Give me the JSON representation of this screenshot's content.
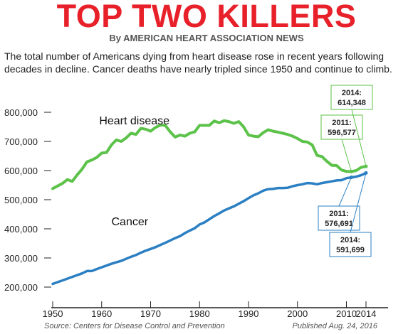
{
  "header": {
    "title": "TOP TWO KILLERS",
    "byline": "By AMERICAN HEART ASSOCIATION NEWS",
    "intro": "The total number of Americans dying from heart disease rose in recent years following decades in decline. Cancer deaths have nearly tripled since 1950 and continue to climb."
  },
  "footer": {
    "source": "Source: Centers for Disease Control and Prevention",
    "published": "Published Aug. 24, 2016"
  },
  "colors": {
    "heart": "#5cc24a",
    "cancer": "#2b7fc3",
    "title": "#e8202a",
    "grid": "#222222"
  },
  "chart_data": {
    "type": "line",
    "title": "TOP TWO KILLERS",
    "xlabel": "",
    "ylabel": "",
    "xlim": [
      1950,
      2014
    ],
    "ylim": [
      200000,
      800000
    ],
    "x_ticks": [
      "1950",
      "1960",
      "1970",
      "1980",
      "1990",
      "2000",
      "2010",
      "2014"
    ],
    "y_ticks": [
      "200,000",
      "300,000",
      "400,000",
      "500,000",
      "600,000",
      "700,000",
      "800,000"
    ],
    "grid": false,
    "series": [
      {
        "name": "Heart disease",
        "x": [
          1950,
          1951,
          1952,
          1953,
          1954,
          1955,
          1956,
          1957,
          1958,
          1959,
          1960,
          1961,
          1962,
          1963,
          1964,
          1965,
          1966,
          1967,
          1968,
          1969,
          1970,
          1971,
          1972,
          1973,
          1974,
          1975,
          1976,
          1977,
          1978,
          1979,
          1980,
          1981,
          1982,
          1983,
          1984,
          1985,
          1986,
          1987,
          1988,
          1989,
          1990,
          1991,
          1992,
          1993,
          1994,
          1995,
          1996,
          1997,
          1998,
          1999,
          2000,
          2001,
          2002,
          2003,
          2004,
          2005,
          2006,
          2007,
          2008,
          2009,
          2010,
          2011,
          2012,
          2013,
          2014
        ],
        "values": [
          538000,
          547000,
          556000,
          569000,
          563000,
          585000,
          605000,
          630000,
          636000,
          645000,
          660000,
          662000,
          688000,
          705000,
          700000,
          712000,
          728000,
          724000,
          745000,
          742000,
          735000,
          748000,
          756000,
          755000,
          733000,
          715000,
          722000,
          718000,
          728000,
          733000,
          755000,
          755000,
          755000,
          770000,
          764000,
          771000,
          768000,
          762000,
          768000,
          750000,
          722000,
          718000,
          716000,
          730000,
          740000,
          735000,
          732000,
          728000,
          724000,
          718000,
          710000,
          700000,
          698000,
          688000,
          652000,
          648000,
          632000,
          618000,
          617000,
          602000,
          597000,
          596577,
          600000,
          611000,
          614348
        ]
      },
      {
        "name": "Cancer",
        "x": [
          1950,
          1951,
          1952,
          1953,
          1954,
          1955,
          1956,
          1957,
          1958,
          1959,
          1960,
          1961,
          1962,
          1963,
          1964,
          1965,
          1966,
          1967,
          1968,
          1969,
          1970,
          1971,
          1972,
          1973,
          1974,
          1975,
          1976,
          1977,
          1978,
          1979,
          1980,
          1981,
          1982,
          1983,
          1984,
          1985,
          1986,
          1987,
          1988,
          1989,
          1990,
          1991,
          1992,
          1993,
          1994,
          1995,
          1996,
          1997,
          1998,
          1999,
          2000,
          2001,
          2002,
          2003,
          2004,
          2005,
          2006,
          2007,
          2008,
          2009,
          2010,
          2011,
          2012,
          2013,
          2014
        ],
        "values": [
          211000,
          217000,
          223000,
          229000,
          235000,
          241000,
          247000,
          255000,
          255000,
          262000,
          268000,
          274000,
          280000,
          285000,
          290000,
          297000,
          304000,
          310000,
          318000,
          325000,
          331000,
          337000,
          345000,
          352000,
          360000,
          368000,
          375000,
          385000,
          394000,
          402000,
          415000,
          422000,
          433000,
          444000,
          453000,
          463000,
          470000,
          477000,
          486000,
          495000,
          505000,
          515000,
          522000,
          531000,
          536000,
          537000,
          540000,
          540000,
          541000,
          546000,
          550000,
          553000,
          557000,
          556000,
          553000,
          557000,
          560000,
          563000,
          566000,
          567000,
          574000,
          576691,
          579000,
          584000,
          591699
        ]
      }
    ],
    "annotations": [
      {
        "series": "Heart disease",
        "year": 2011,
        "value": 596577,
        "label_year": "2011:",
        "label_value": "596,577"
      },
      {
        "series": "Heart disease",
        "year": 2014,
        "value": 614348,
        "label_year": "2014:",
        "label_value": "614,348"
      },
      {
        "series": "Cancer",
        "year": 2011,
        "value": 576691,
        "label_year": "2011:",
        "label_value": "576,691"
      },
      {
        "series": "Cancer",
        "year": 2014,
        "value": 591699,
        "label_year": "2014:",
        "label_value": "591,699"
      }
    ]
  }
}
